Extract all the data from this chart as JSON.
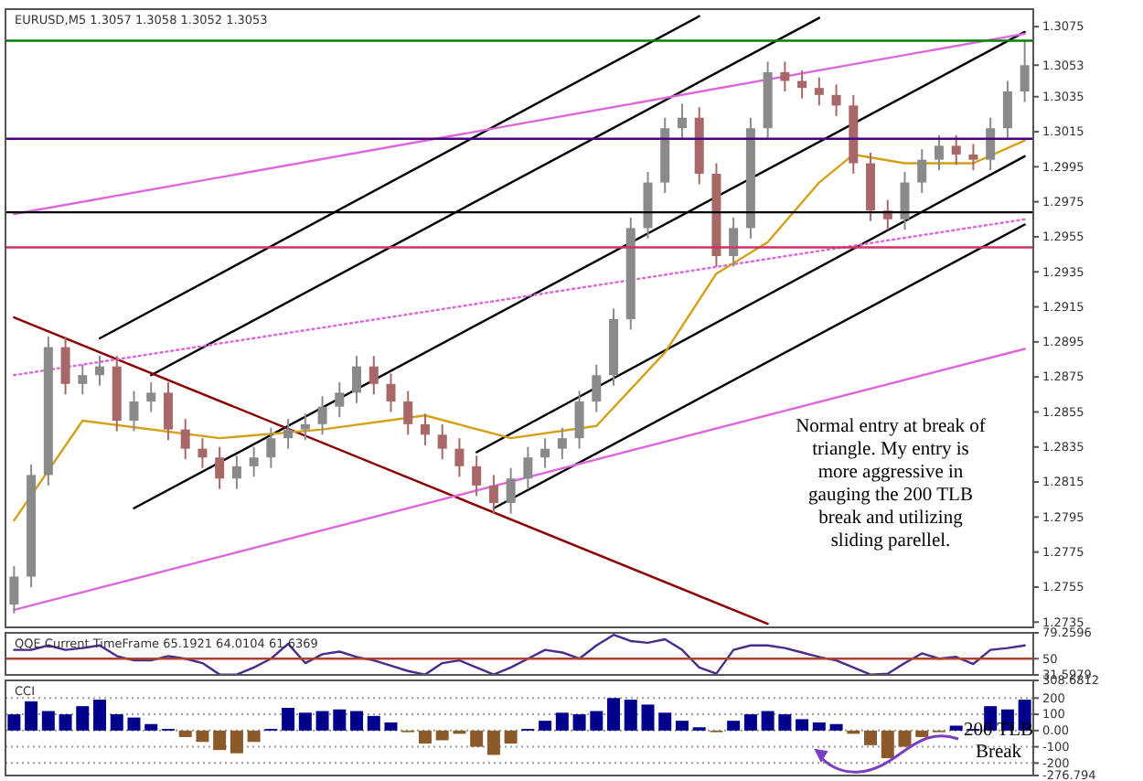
{
  "chart_data": [
    {
      "type": "candlestick",
      "title": "EURUSD,M5  1.3057 1.3058 1.3052 1.3053",
      "tick_labels": "y",
      "colors": [
        "#8a8a8a",
        "#8a8a8a",
        "#8a8a8a",
        "#a86868",
        "#8a8a8a",
        "#8a8a8a",
        "#a86868",
        "#8a8a8a",
        "#8a8a8a",
        "#a86868",
        "#a86868",
        "#a86868",
        "#a86868",
        "#8a8a8a",
        "#8a8a8a",
        "#8a8a8a",
        "#8a8a8a",
        "#8a8a8a",
        "#8a8a8a",
        "#8a8a8a",
        "#8a8a8a",
        "#a86868",
        "#a86868",
        "#a86868",
        "#a86868",
        "#a86868",
        "#a86868",
        "#a86868",
        "#a86868",
        "#8a8a8a",
        "#8a8a8a",
        "#8a8a8a",
        "#8a8a8a",
        "#8a8a8a",
        "#8a8a8a",
        "#8a8a8a",
        "#8a8a8a",
        "#8a8a8a",
        "#8a8a8a",
        "#8a8a8a",
        "#a86868",
        "#a86868",
        "#8a8a8a",
        "#8a8a8a",
        "#8a8a8a",
        "#a86868",
        "#a86868",
        "#a86868",
        "#a86868",
        "#a86868",
        "#a86868",
        "#a86868",
        "#8a8a8a",
        "#8a8a8a",
        "#8a8a8a",
        "#a86868",
        "#a86868",
        "#8a8a8a",
        "#8a8a8a",
        "#8a8a8a"
      ],
      "categories": [
        null,
        null,
        null,
        null,
        null,
        null,
        null,
        null,
        null,
        null,
        null,
        null,
        null,
        null,
        null,
        null,
        null,
        null,
        null,
        null,
        null,
        null,
        null,
        null,
        null,
        null,
        null,
        null,
        null,
        null,
        null,
        null,
        null,
        null,
        null,
        null,
        null,
        null,
        null,
        null,
        null,
        null,
        null,
        null,
        null,
        null,
        null,
        null,
        null,
        null,
        null,
        null,
        null,
        null,
        null,
        null,
        null,
        null,
        null,
        null
      ],
      "ohlc": [
        [
          1.2745,
          1.2767,
          1.274,
          1.2761
        ],
        [
          1.2761,
          1.2825,
          1.2755,
          1.2819
        ],
        [
          1.2819,
          1.2898,
          1.2813,
          1.2892
        ],
        [
          1.2892,
          1.2898,
          1.2865,
          1.2871
        ],
        [
          1.2871,
          1.2882,
          1.2865,
          1.2876
        ],
        [
          1.2876,
          1.2887,
          1.287,
          1.2881
        ],
        [
          1.2881,
          1.2887,
          1.2844,
          1.285
        ],
        [
          1.285,
          1.2867,
          1.2844,
          1.2861
        ],
        [
          1.2861,
          1.2872,
          1.2855,
          1.2866
        ],
        [
          1.2866,
          1.2872,
          1.2839,
          1.2845
        ],
        [
          1.2845,
          1.2851,
          1.2828,
          1.2834
        ],
        [
          1.2834,
          1.284,
          1.2823,
          1.2829
        ],
        [
          1.2829,
          1.2835,
          1.2811,
          1.2817
        ],
        [
          1.2817,
          1.283,
          1.2811,
          1.2824
        ],
        [
          1.2824,
          1.2835,
          1.2818,
          1.2829
        ],
        [
          1.2829,
          1.2846,
          1.2823,
          1.284
        ],
        [
          1.284,
          1.2851,
          1.2834,
          1.2845
        ],
        [
          1.2845,
          1.2854,
          1.2839,
          1.2848
        ],
        [
          1.2848,
          1.2864,
          1.2842,
          1.2858
        ],
        [
          1.2858,
          1.2872,
          1.2852,
          1.2866
        ],
        [
          1.2866,
          1.2887,
          1.286,
          1.2881
        ],
        [
          1.2881,
          1.2887,
          1.2865,
          1.2871
        ],
        [
          1.2871,
          1.2877,
          1.2855,
          1.2861
        ],
        [
          1.2861,
          1.2867,
          1.2842,
          1.2848
        ],
        [
          1.2848,
          1.2854,
          1.2836,
          1.2842
        ],
        [
          1.2842,
          1.2848,
          1.2828,
          1.2834
        ],
        [
          1.2834,
          1.284,
          1.2818,
          1.2824
        ],
        [
          1.2824,
          1.283,
          1.2807,
          1.2813
        ],
        [
          1.2813,
          1.2819,
          1.2797,
          1.2803
        ],
        [
          1.2803,
          1.2823,
          1.2797,
          1.2817
        ],
        [
          1.2817,
          1.2835,
          1.2811,
          1.2829
        ],
        [
          1.2829,
          1.284,
          1.2823,
          1.2834
        ],
        [
          1.2834,
          1.2846,
          1.2828,
          1.284
        ],
        [
          1.284,
          1.2867,
          1.2834,
          1.2861
        ],
        [
          1.2861,
          1.2882,
          1.2855,
          1.2876
        ],
        [
          1.2876,
          1.2914,
          1.287,
          1.2908
        ],
        [
          1.2908,
          1.2966,
          1.2902,
          1.296
        ],
        [
          1.296,
          1.2992,
          1.2954,
          1.2986
        ],
        [
          1.2986,
          1.3023,
          1.298,
          1.3017
        ],
        [
          1.3017,
          1.3031,
          1.3011,
          1.3023
        ],
        [
          1.3023,
          1.3029,
          1.2985,
          1.2991
        ],
        [
          1.2991,
          1.2997,
          1.2938,
          1.2944
        ],
        [
          1.2944,
          1.2966,
          1.2938,
          1.296
        ],
        [
          1.296,
          1.3023,
          1.2954,
          1.3017
        ],
        [
          1.3017,
          1.3055,
          1.3011,
          1.3049
        ],
        [
          1.3049,
          1.3055,
          1.3038,
          1.3044
        ],
        [
          1.3044,
          1.305,
          1.3034,
          1.304
        ],
        [
          1.304,
          1.3046,
          1.303,
          1.3036
        ],
        [
          1.3036,
          1.3042,
          1.3024,
          1.303
        ],
        [
          1.303,
          1.3036,
          1.2991,
          1.2997
        ],
        [
          1.2997,
          1.3003,
          1.2964,
          1.297
        ],
        [
          1.297,
          1.2976,
          1.2959,
          1.2965
        ],
        [
          1.2965,
          1.2992,
          1.2959,
          1.2986
        ],
        [
          1.2986,
          1.3005,
          1.298,
          1.2999
        ],
        [
          1.2999,
          1.3013,
          1.2993,
          1.3007
        ],
        [
          1.3007,
          1.3013,
          1.2996,
          1.3002
        ],
        [
          1.3002,
          1.3008,
          1.2993,
          1.2999
        ],
        [
          1.2999,
          1.3023,
          1.2993,
          1.3017
        ],
        [
          1.3017,
          1.3044,
          1.3011,
          1.3038
        ],
        [
          1.3038,
          1.3067,
          1.3032,
          1.3053
        ]
      ],
      "ylim": [
        1.2732,
        1.3085
      ],
      "yticks": [
        1.3075,
        {
          "value": 1.3053,
          "label": "1.3053"
        },
        1.3035,
        1.3015,
        1.2995,
        1.2975,
        1.2955,
        1.2935,
        1.2915,
        1.2895,
        1.2875,
        1.2855,
        1.2835,
        1.2815,
        1.2795,
        1.2775,
        1.2755,
        1.2735
      ],
      "series": [
        {
          "type": "line",
          "color": "#000000",
          "values": [
            null,
            null,
            null,
            null,
            null,
            1.2897,
            null,
            null,
            null,
            null,
            null,
            null,
            null,
            null,
            null,
            null,
            null,
            null,
            null,
            null,
            null,
            null,
            null,
            null,
            null,
            null,
            null,
            null,
            null,
            null,
            null,
            null,
            null,
            null,
            null,
            null,
            null,
            null,
            null,
            null,
            1.3081,
            null,
            null,
            null,
            null,
            null,
            null,
            null,
            null,
            null,
            null,
            null,
            null,
            null,
            null,
            null,
            null,
            null,
            null,
            null
          ]
        },
        {
          "type": "line",
          "color": "#000000",
          "values": [
            null,
            null,
            null,
            null,
            null,
            null,
            null,
            null,
            1.2876,
            null,
            null,
            null,
            null,
            null,
            null,
            null,
            null,
            null,
            null,
            null,
            null,
            null,
            null,
            null,
            null,
            null,
            null,
            null,
            null,
            null,
            null,
            null,
            null,
            null,
            null,
            null,
            null,
            null,
            null,
            null,
            null,
            null,
            null,
            null,
            null,
            null,
            null,
            1.308,
            null,
            null,
            null,
            null,
            null,
            null,
            null,
            null,
            null,
            null,
            null,
            null
          ]
        },
        {
          "type": "line",
          "color": "#000000",
          "values": [
            null,
            null,
            null,
            null,
            null,
            null,
            null,
            1.28,
            null,
            null,
            null,
            null,
            null,
            null,
            null,
            null,
            null,
            null,
            null,
            null,
            null,
            null,
            null,
            null,
            null,
            null,
            null,
            null,
            null,
            null,
            null,
            null,
            null,
            null,
            null,
            null,
            null,
            null,
            null,
            null,
            null,
            null,
            null,
            null,
            null,
            null,
            null,
            null,
            null,
            null,
            null,
            null,
            null,
            null,
            null,
            null,
            null,
            null,
            null,
            1.3072
          ]
        },
        {
          "type": "line",
          "color": "#000000",
          "values": [
            null,
            null,
            null,
            null,
            null,
            null,
            null,
            null,
            null,
            null,
            null,
            null,
            null,
            null,
            null,
            null,
            null,
            null,
            null,
            null,
            null,
            null,
            null,
            null,
            null,
            null,
            null,
            1.2832,
            null,
            null,
            null,
            null,
            null,
            null,
            null,
            null,
            null,
            null,
            null,
            null,
            null,
            null,
            null,
            null,
            null,
            null,
            null,
            null,
            null,
            null,
            null,
            null,
            null,
            null,
            null,
            null,
            null,
            null,
            null,
            1.3001
          ]
        },
        {
          "type": "line",
          "color": "#000000",
          "values": [
            null,
            null,
            null,
            null,
            null,
            null,
            null,
            null,
            null,
            null,
            null,
            null,
            null,
            null,
            null,
            null,
            null,
            null,
            null,
            null,
            null,
            null,
            null,
            null,
            null,
            null,
            null,
            null,
            1.28,
            null,
            null,
            null,
            null,
            null,
            null,
            null,
            null,
            null,
            null,
            null,
            null,
            null,
            null,
            null,
            null,
            null,
            null,
            null,
            null,
            null,
            null,
            null,
            null,
            null,
            null,
            null,
            null,
            null,
            null,
            1.2962
          ]
        },
        {
          "type": "line",
          "color": "#8b0000",
          "values": [
            1.2909,
            null,
            null,
            null,
            null,
            null,
            null,
            null,
            null,
            null,
            null,
            null,
            null,
            null,
            null,
            null,
            null,
            null,
            null,
            null,
            null,
            null,
            null,
            null,
            null,
            null,
            null,
            null,
            null,
            null,
            null,
            null,
            null,
            null,
            null,
            null,
            null,
            null,
            null,
            null,
            null,
            null,
            null,
            null,
            1.2734,
            null,
            null,
            null,
            null,
            null,
            null,
            null,
            null,
            null,
            null,
            null,
            null,
            null,
            null,
            null
          ]
        },
        {
          "type": "line",
          "color": "#dd66dd",
          "values": [
            1.2968,
            null,
            null,
            null,
            null,
            null,
            null,
            null,
            null,
            null,
            null,
            null,
            null,
            null,
            null,
            null,
            null,
            null,
            null,
            null,
            null,
            null,
            null,
            null,
            null,
            null,
            null,
            null,
            null,
            null,
            null,
            null,
            null,
            null,
            null,
            null,
            null,
            null,
            null,
            null,
            null,
            null,
            null,
            null,
            null,
            null,
            null,
            null,
            null,
            null,
            null,
            null,
            null,
            null,
            null,
            null,
            null,
            null,
            null,
            1.3071
          ]
        },
        {
          "type": "line",
          "color": "#dd66dd",
          "line_style": "dotted",
          "values": [
            1.2876,
            null,
            null,
            null,
            null,
            null,
            null,
            null,
            null,
            null,
            null,
            null,
            null,
            null,
            null,
            null,
            null,
            null,
            null,
            null,
            null,
            null,
            null,
            null,
            null,
            null,
            null,
            null,
            null,
            null,
            null,
            null,
            null,
            null,
            null,
            null,
            null,
            null,
            null,
            null,
            null,
            null,
            null,
            null,
            null,
            null,
            null,
            null,
            null,
            null,
            null,
            null,
            null,
            null,
            null,
            null,
            null,
            null,
            null,
            1.2965
          ]
        },
        {
          "type": "line",
          "color": "#dd66dd",
          "values": [
            1.2742,
            null,
            null,
            null,
            null,
            null,
            null,
            null,
            null,
            null,
            null,
            null,
            null,
            null,
            null,
            null,
            null,
            null,
            null,
            null,
            null,
            null,
            null,
            null,
            null,
            null,
            null,
            null,
            null,
            null,
            null,
            null,
            null,
            null,
            null,
            null,
            null,
            null,
            null,
            null,
            null,
            null,
            null,
            null,
            null,
            null,
            null,
            null,
            null,
            null,
            null,
            null,
            null,
            null,
            null,
            null,
            null,
            null,
            null,
            1.2891
          ]
        },
        {
          "type": "line",
          "color": "#d4a017",
          "values": [
            1.2793,
            null,
            null,
            null,
            1.285,
            null,
            null,
            null,
            null,
            null,
            null,
            null,
            1.284,
            null,
            null,
            null,
            null,
            null,
            1.2845,
            null,
            null,
            null,
            null,
            null,
            1.2853,
            null,
            null,
            null,
            null,
            1.284,
            null,
            null,
            null,
            null,
            1.2847,
            null,
            null,
            null,
            1.2889,
            null,
            null,
            1.2934,
            null,
            null,
            1.2952,
            null,
            null,
            1.2986,
            null,
            1.3002,
            null,
            null,
            1.2997,
            null,
            null,
            null,
            1.2997,
            null,
            null,
            1.301
          ]
        }
      ],
      "ref_lines": [
        {
          "axis": "y",
          "value": 1.3067,
          "color": "#008000"
        },
        {
          "axis": "y",
          "value": 1.3011,
          "color": "#4b0082"
        },
        {
          "axis": "y",
          "value": 1.2969,
          "color": "#000000"
        },
        {
          "axis": "y",
          "value": 1.2949,
          "color": "#cc3366"
        }
      ],
      "annotations": [
        "Normal entry at break of triangle. My entry is more aggressive in gauging the 200 TLB break and utilizing sliding parellel."
      ]
    },
    {
      "type": "line",
      "title": "QQE Current TimeFrame 65.1921 64.0104 61.6369",
      "color": "#4b2a8a",
      "tick_labels": "y",
      "categories": [
        null,
        null,
        null,
        null,
        null,
        null,
        null,
        null,
        null,
        null,
        null,
        null,
        null,
        null,
        null,
        null,
        null,
        null,
        null,
        null,
        null,
        null,
        null,
        null,
        null,
        null,
        null,
        null,
        null,
        null,
        null,
        null,
        null,
        null,
        null,
        null,
        null,
        null,
        null,
        null,
        null,
        null,
        null,
        null,
        null,
        null,
        null,
        null,
        null,
        null,
        null,
        null,
        null,
        null,
        null,
        null,
        null,
        null,
        null,
        null
      ],
      "values": [
        60,
        60,
        65,
        60,
        62,
        65,
        53,
        48,
        48,
        53,
        50,
        45,
        32,
        32,
        40,
        50,
        67,
        45,
        55,
        58,
        52,
        48,
        42,
        36,
        32,
        45,
        48,
        40,
        32,
        40,
        50,
        60,
        57,
        50,
        65,
        77,
        70,
        68,
        72,
        60,
        40,
        33,
        60,
        65,
        65,
        62,
        57,
        52,
        48,
        40,
        32,
        33,
        45,
        56,
        50,
        52,
        44,
        60,
        62,
        65
      ],
      "ylim": [
        31.5979,
        79.2596
      ],
      "yticks": [
        79.2596,
        50,
        31.5979
      ],
      "ref_lines": [
        {
          "axis": "y",
          "value": 50,
          "color": "#b04030"
        }
      ]
    },
    {
      "type": "bar",
      "title": "CCI",
      "tick_labels": "y",
      "grid": "y",
      "categories": [
        null,
        null,
        null,
        null,
        null,
        null,
        null,
        null,
        null,
        null,
        null,
        null,
        null,
        null,
        null,
        null,
        null,
        null,
        null,
        null,
        null,
        null,
        null,
        null,
        null,
        null,
        null,
        null,
        null,
        null,
        null,
        null,
        null,
        null,
        null,
        null,
        null,
        null,
        null,
        null,
        null,
        null,
        null,
        null,
        null,
        null,
        null,
        null,
        null,
        null,
        null,
        null,
        null,
        null,
        null,
        null,
        null,
        null,
        null,
        null
      ],
      "values": [
        100,
        180,
        120,
        100,
        150,
        190,
        100,
        80,
        40,
        10,
        -40,
        -70,
        -120,
        -140,
        -70,
        10,
        140,
        110,
        120,
        130,
        120,
        90,
        50,
        -10,
        -80,
        -60,
        -20,
        -100,
        -150,
        -80,
        10,
        60,
        110,
        100,
        120,
        200,
        190,
        160,
        110,
        60,
        20,
        -10,
        60,
        100,
        120,
        100,
        70,
        50,
        40,
        -20,
        -90,
        -170,
        -100,
        -40,
        -10,
        30,
        10,
        150,
        130,
        190
      ],
      "colors": [
        "#00008b",
        "#00008b",
        "#00008b",
        "#00008b",
        "#00008b",
        "#00008b",
        "#00008b",
        "#00008b",
        "#00008b",
        "#00008b",
        "#8b5a2b",
        "#8b5a2b",
        "#8b5a2b",
        "#8b5a2b",
        "#8b5a2b",
        "#00008b",
        "#00008b",
        "#00008b",
        "#00008b",
        "#00008b",
        "#00008b",
        "#00008b",
        "#00008b",
        "#8b5a2b",
        "#8b5a2b",
        "#8b5a2b",
        "#8b5a2b",
        "#8b5a2b",
        "#8b5a2b",
        "#8b5a2b",
        "#00008b",
        "#00008b",
        "#00008b",
        "#00008b",
        "#00008b",
        "#00008b",
        "#00008b",
        "#00008b",
        "#00008b",
        "#00008b",
        "#00008b",
        "#8b5a2b",
        "#00008b",
        "#00008b",
        "#00008b",
        "#00008b",
        "#00008b",
        "#00008b",
        "#00008b",
        "#8b5a2b",
        "#8b5a2b",
        "#8b5a2b",
        "#8b5a2b",
        "#8b5a2b",
        "#8b5a2b",
        "#00008b",
        "#00008b",
        "#00008b",
        "#00008b",
        "#00008b"
      ],
      "ylim": [
        -276.794,
        308.6812
      ],
      "yticks": [
        308.6812,
        200,
        100,
        {
          "value": 0,
          "label": "0.00"
        },
        -100,
        -200,
        -276.794
      ],
      "annotations": [
        "200 TLB Break"
      ]
    }
  ]
}
